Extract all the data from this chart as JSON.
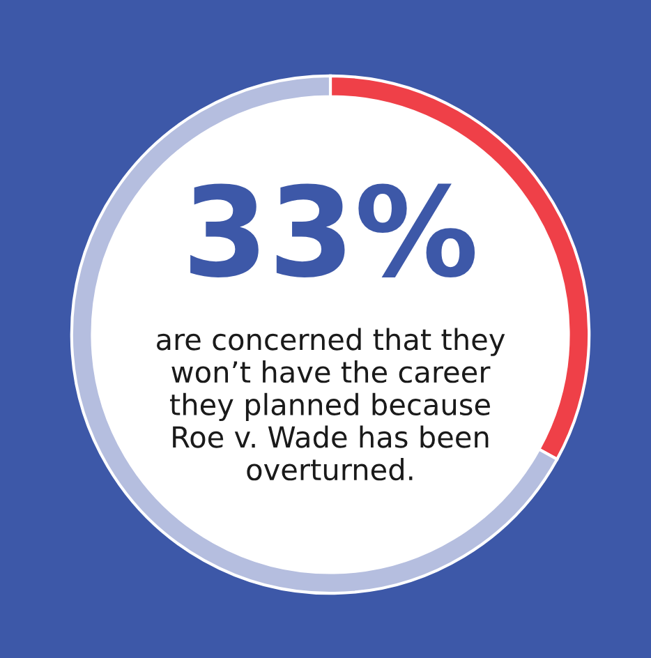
{
  "chart_data": {
    "type": "donut",
    "categories": [
      null,
      null
    ],
    "values": [
      33,
      67
    ],
    "colors": [
      "#ef4048",
      "#b5bedf"
    ],
    "value_labels": [
      "33%",
      null
    ],
    "annotations": [
      "are concerned that they\nwon’t have the career\nthey planned because\nRoe v. Wade has been\noverturned."
    ],
    "legend": false
  }
}
